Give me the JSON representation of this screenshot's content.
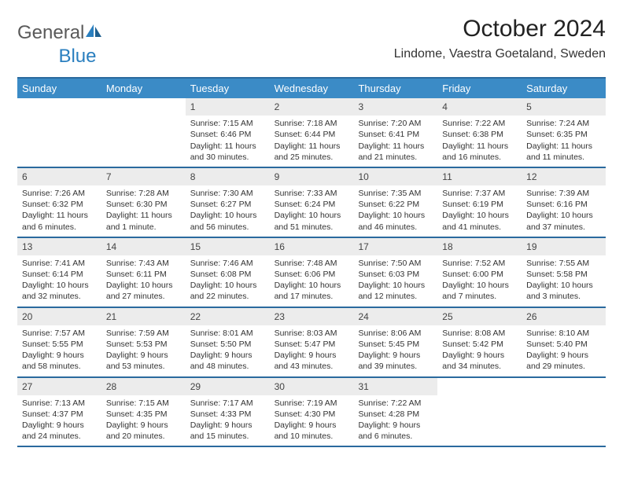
{
  "logo": {
    "text_gray": "General",
    "text_blue": "Blue"
  },
  "title": "October 2024",
  "location": "Lindome, Vaestra Goetaland, Sweden",
  "colors": {
    "header_bg": "#3b8bc6",
    "header_border": "#2a6a9e",
    "day_bg": "#ececec",
    "logo_gray": "#5a5a5a",
    "logo_blue": "#2a7fbf"
  },
  "day_names": [
    "Sunday",
    "Monday",
    "Tuesday",
    "Wednesday",
    "Thursday",
    "Friday",
    "Saturday"
  ],
  "weeks": [
    [
      null,
      null,
      {
        "n": "1",
        "sr": "Sunrise: 7:15 AM",
        "ss": "Sunset: 6:46 PM",
        "d1": "Daylight: 11 hours",
        "d2": "and 30 minutes."
      },
      {
        "n": "2",
        "sr": "Sunrise: 7:18 AM",
        "ss": "Sunset: 6:44 PM",
        "d1": "Daylight: 11 hours",
        "d2": "and 25 minutes."
      },
      {
        "n": "3",
        "sr": "Sunrise: 7:20 AM",
        "ss": "Sunset: 6:41 PM",
        "d1": "Daylight: 11 hours",
        "d2": "and 21 minutes."
      },
      {
        "n": "4",
        "sr": "Sunrise: 7:22 AM",
        "ss": "Sunset: 6:38 PM",
        "d1": "Daylight: 11 hours",
        "d2": "and 16 minutes."
      },
      {
        "n": "5",
        "sr": "Sunrise: 7:24 AM",
        "ss": "Sunset: 6:35 PM",
        "d1": "Daylight: 11 hours",
        "d2": "and 11 minutes."
      }
    ],
    [
      {
        "n": "6",
        "sr": "Sunrise: 7:26 AM",
        "ss": "Sunset: 6:32 PM",
        "d1": "Daylight: 11 hours",
        "d2": "and 6 minutes."
      },
      {
        "n": "7",
        "sr": "Sunrise: 7:28 AM",
        "ss": "Sunset: 6:30 PM",
        "d1": "Daylight: 11 hours",
        "d2": "and 1 minute."
      },
      {
        "n": "8",
        "sr": "Sunrise: 7:30 AM",
        "ss": "Sunset: 6:27 PM",
        "d1": "Daylight: 10 hours",
        "d2": "and 56 minutes."
      },
      {
        "n": "9",
        "sr": "Sunrise: 7:33 AM",
        "ss": "Sunset: 6:24 PM",
        "d1": "Daylight: 10 hours",
        "d2": "and 51 minutes."
      },
      {
        "n": "10",
        "sr": "Sunrise: 7:35 AM",
        "ss": "Sunset: 6:22 PM",
        "d1": "Daylight: 10 hours",
        "d2": "and 46 minutes."
      },
      {
        "n": "11",
        "sr": "Sunrise: 7:37 AM",
        "ss": "Sunset: 6:19 PM",
        "d1": "Daylight: 10 hours",
        "d2": "and 41 minutes."
      },
      {
        "n": "12",
        "sr": "Sunrise: 7:39 AM",
        "ss": "Sunset: 6:16 PM",
        "d1": "Daylight: 10 hours",
        "d2": "and 37 minutes."
      }
    ],
    [
      {
        "n": "13",
        "sr": "Sunrise: 7:41 AM",
        "ss": "Sunset: 6:14 PM",
        "d1": "Daylight: 10 hours",
        "d2": "and 32 minutes."
      },
      {
        "n": "14",
        "sr": "Sunrise: 7:43 AM",
        "ss": "Sunset: 6:11 PM",
        "d1": "Daylight: 10 hours",
        "d2": "and 27 minutes."
      },
      {
        "n": "15",
        "sr": "Sunrise: 7:46 AM",
        "ss": "Sunset: 6:08 PM",
        "d1": "Daylight: 10 hours",
        "d2": "and 22 minutes."
      },
      {
        "n": "16",
        "sr": "Sunrise: 7:48 AM",
        "ss": "Sunset: 6:06 PM",
        "d1": "Daylight: 10 hours",
        "d2": "and 17 minutes."
      },
      {
        "n": "17",
        "sr": "Sunrise: 7:50 AM",
        "ss": "Sunset: 6:03 PM",
        "d1": "Daylight: 10 hours",
        "d2": "and 12 minutes."
      },
      {
        "n": "18",
        "sr": "Sunrise: 7:52 AM",
        "ss": "Sunset: 6:00 PM",
        "d1": "Daylight: 10 hours",
        "d2": "and 7 minutes."
      },
      {
        "n": "19",
        "sr": "Sunrise: 7:55 AM",
        "ss": "Sunset: 5:58 PM",
        "d1": "Daylight: 10 hours",
        "d2": "and 3 minutes."
      }
    ],
    [
      {
        "n": "20",
        "sr": "Sunrise: 7:57 AM",
        "ss": "Sunset: 5:55 PM",
        "d1": "Daylight: 9 hours",
        "d2": "and 58 minutes."
      },
      {
        "n": "21",
        "sr": "Sunrise: 7:59 AM",
        "ss": "Sunset: 5:53 PM",
        "d1": "Daylight: 9 hours",
        "d2": "and 53 minutes."
      },
      {
        "n": "22",
        "sr": "Sunrise: 8:01 AM",
        "ss": "Sunset: 5:50 PM",
        "d1": "Daylight: 9 hours",
        "d2": "and 48 minutes."
      },
      {
        "n": "23",
        "sr": "Sunrise: 8:03 AM",
        "ss": "Sunset: 5:47 PM",
        "d1": "Daylight: 9 hours",
        "d2": "and 43 minutes."
      },
      {
        "n": "24",
        "sr": "Sunrise: 8:06 AM",
        "ss": "Sunset: 5:45 PM",
        "d1": "Daylight: 9 hours",
        "d2": "and 39 minutes."
      },
      {
        "n": "25",
        "sr": "Sunrise: 8:08 AM",
        "ss": "Sunset: 5:42 PM",
        "d1": "Daylight: 9 hours",
        "d2": "and 34 minutes."
      },
      {
        "n": "26",
        "sr": "Sunrise: 8:10 AM",
        "ss": "Sunset: 5:40 PM",
        "d1": "Daylight: 9 hours",
        "d2": "and 29 minutes."
      }
    ],
    [
      {
        "n": "27",
        "sr": "Sunrise: 7:13 AM",
        "ss": "Sunset: 4:37 PM",
        "d1": "Daylight: 9 hours",
        "d2": "and 24 minutes."
      },
      {
        "n": "28",
        "sr": "Sunrise: 7:15 AM",
        "ss": "Sunset: 4:35 PM",
        "d1": "Daylight: 9 hours",
        "d2": "and 20 minutes."
      },
      {
        "n": "29",
        "sr": "Sunrise: 7:17 AM",
        "ss": "Sunset: 4:33 PM",
        "d1": "Daylight: 9 hours",
        "d2": "and 15 minutes."
      },
      {
        "n": "30",
        "sr": "Sunrise: 7:19 AM",
        "ss": "Sunset: 4:30 PM",
        "d1": "Daylight: 9 hours",
        "d2": "and 10 minutes."
      },
      {
        "n": "31",
        "sr": "Sunrise: 7:22 AM",
        "ss": "Sunset: 4:28 PM",
        "d1": "Daylight: 9 hours",
        "d2": "and 6 minutes."
      },
      null,
      null
    ]
  ]
}
